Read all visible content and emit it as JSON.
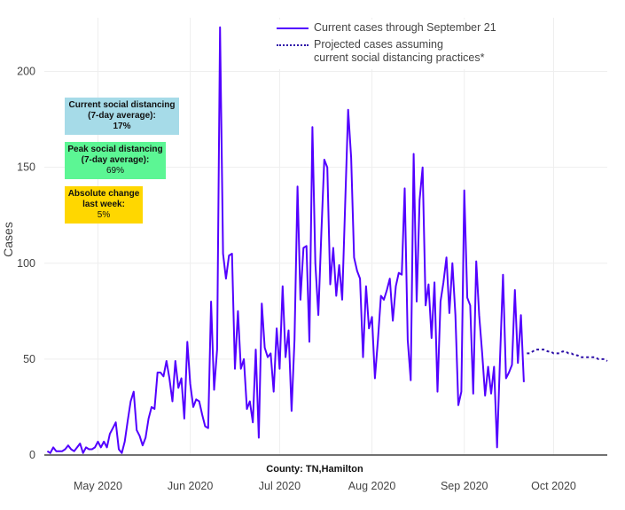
{
  "chart_data": {
    "type": "line",
    "title": "",
    "xlabel": "County: TN,Hamilton",
    "ylabel": "Cases",
    "ylim": [
      0,
      228
    ],
    "xlim": [
      "2020-04-13",
      "2020-10-19"
    ],
    "x_ticks": [
      {
        "date": "2020-05-01",
        "label": "May 2020"
      },
      {
        "date": "2020-06-01",
        "label": "Jun 2020"
      },
      {
        "date": "2020-07-01",
        "label": "Jul 2020"
      },
      {
        "date": "2020-08-01",
        "label": "Aug 2020"
      },
      {
        "date": "2020-09-01",
        "label": "Sep 2020"
      },
      {
        "date": "2020-10-01",
        "label": "Oct 2020"
      }
    ],
    "y_ticks": [
      0,
      50,
      100,
      150,
      200
    ],
    "grid": true,
    "legend_position": "top-right",
    "series": [
      {
        "name": "Current cases through September 21",
        "style": "solid",
        "color": "#5200ff",
        "start": "2020-04-14",
        "values": [
          2,
          1,
          4,
          2,
          2,
          2,
          3,
          5,
          3,
          2,
          4,
          6,
          1,
          4,
          3,
          3,
          4,
          7,
          4,
          7,
          4,
          11,
          14,
          17,
          3,
          1,
          7,
          18,
          28,
          33,
          13,
          10,
          5,
          9,
          19,
          25,
          24,
          43,
          43,
          41,
          49,
          40,
          28,
          49,
          35,
          40,
          19,
          59,
          37,
          25,
          29,
          28,
          21,
          15,
          14,
          80,
          34,
          55,
          223,
          105,
          92,
          104,
          105,
          45,
          75,
          45,
          50,
          24,
          28,
          17,
          55,
          9,
          79,
          56,
          51,
          53,
          33,
          66,
          45,
          88,
          51,
          65,
          23,
          60,
          140,
          81,
          108,
          109,
          59,
          171,
          100,
          73,
          116,
          154,
          150,
          89,
          108,
          83,
          99,
          81,
          130,
          180,
          155,
          103,
          96,
          92,
          51,
          88,
          66,
          72,
          40,
          60,
          83,
          81,
          86,
          92,
          70,
          88,
          95,
          94,
          139,
          60,
          39,
          157,
          80,
          133,
          150,
          78,
          89,
          61,
          90,
          33,
          80,
          90,
          103,
          74,
          100,
          73,
          26,
          33,
          138,
          82,
          78,
          32,
          101,
          73,
          53,
          31,
          46,
          32,
          46,
          4,
          50,
          94,
          40,
          43,
          47,
          86,
          48,
          73,
          38
        ]
      },
      {
        "name": "Projected cases assuming current social distancing practices*",
        "name_lines": [
          "Projected cases assuming",
          "current social distancing practices*"
        ],
        "style": "dotted",
        "color": "#2d0fa8",
        "start": "2020-09-22",
        "values": [
          53,
          53,
          54,
          55,
          55,
          55,
          55,
          54,
          54,
          53,
          53,
          53,
          54,
          54,
          53,
          53,
          52,
          52,
          51,
          51,
          51,
          51,
          51,
          51,
          50,
          50,
          50,
          49
        ]
      }
    ]
  },
  "annotations": [
    {
      "title": "Current social distancing (7-day average):",
      "value": "17%",
      "color": "#a6dbe8"
    },
    {
      "title": "Peak social distancing (7-day average):",
      "value": "69%",
      "color": "#5cf694"
    },
    {
      "title": "Absolute change last week:",
      "value": "5%",
      "color": "#ffd700"
    }
  ]
}
